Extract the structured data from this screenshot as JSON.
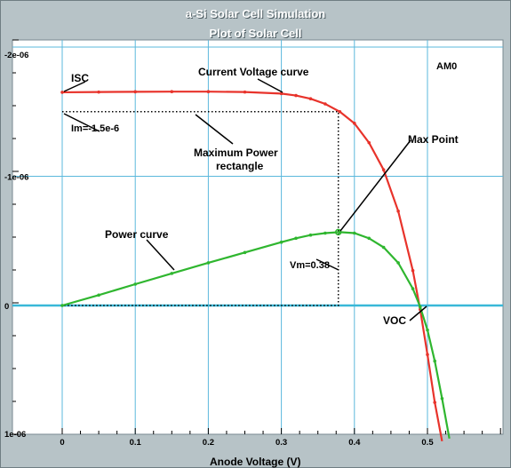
{
  "header": {
    "title": "a-Si Solar Cell Simulation",
    "subtitle": "Plot of Solar Cell"
  },
  "chart_data": {
    "type": "line",
    "title": "a-Si Solar Cell Simulation",
    "subtitle": "Plot of Solar Cell",
    "xlabel": "Anode Voltage (V)",
    "ylabel": "",
    "xlim": [
      0,
      0.6
    ],
    "ylim": [
      -2e-06,
      1e-06
    ],
    "grid": true,
    "x_ticks": [
      {
        "value": 0,
        "label": "0"
      },
      {
        "value": 0.1,
        "label": "0.1"
      },
      {
        "value": 0.2,
        "label": "0.2"
      },
      {
        "value": 0.3,
        "label": "0.3"
      },
      {
        "value": 0.4,
        "label": "0.4"
      },
      {
        "value": 0.5,
        "label": "0.5"
      }
    ],
    "y_ticks": [
      {
        "value": -2e-06,
        "label": "-2e-06"
      },
      {
        "value": -1e-06,
        "label": "-1e-06"
      },
      {
        "value": 0,
        "label": "0"
      },
      {
        "value": 1e-06,
        "label": "1e-06"
      }
    ],
    "series": [
      {
        "color": "#e8332b",
        "x": [
          0,
          0.05,
          0.1,
          0.15,
          0.2,
          0.25,
          0.3,
          0.32,
          0.34,
          0.36,
          0.38,
          0.4,
          0.42,
          0.44,
          0.46,
          0.48,
          0.49,
          0.5,
          0.51,
          0.52
        ],
        "y": [
          -1.65e-06,
          -1.652e-06,
          -1.654e-06,
          -1.655e-06,
          -1.655e-06,
          -1.652e-06,
          -1.64e-06,
          -1.625e-06,
          -1.6e-06,
          -1.56e-06,
          -1.5e-06,
          -1.41e-06,
          -1.26e-06,
          -1.05e-06,
          -7.3e-07,
          -2.7e-07,
          3e-08,
          3.8e-07,
          7.5e-07,
          1.05e-06
        ]
      },
      {
        "color": "#2fb62f",
        "x": [
          0,
          0.05,
          0.1,
          0.15,
          0.2,
          0.25,
          0.3,
          0.32,
          0.34,
          0.36,
          0.38,
          0.4,
          0.42,
          0.44,
          0.46,
          0.48,
          0.49,
          0.5,
          0.51,
          0.52,
          0.53
        ],
        "y": [
          0,
          -8e-08,
          -1.65e-07,
          -2.48e-07,
          -3.3e-07,
          -4.1e-07,
          -4.9e-07,
          -5.2e-07,
          -5.45e-07,
          -5.6e-07,
          -5.68e-07,
          -5.6e-07,
          -5.2e-07,
          -4.5e-07,
          -3.3e-07,
          -1.3e-07,
          1e-08,
          1.9e-07,
          4.3e-07,
          7.2e-07,
          1.03e-06
        ]
      }
    ],
    "max_power_rectangle": {
      "x": 0.378,
      "y": -1.5e-06
    },
    "annotations": {
      "isc": "ISC",
      "current_voltage": "Current Voltage curve",
      "am0": "AM0",
      "im": "Im=-1.5e-6",
      "max_power_line1": "Maximum Power",
      "max_power_line2": "rectangle",
      "max_point": "Max Point",
      "power_curve": "Power curve",
      "vm": "Vm=0.38",
      "voc": "VOC"
    },
    "colors": {
      "current_curve": "#e8332b",
      "power_curve": "#2fb62f",
      "grid": "#5bb8dc",
      "zero_line": "#39b8d8",
      "plot_background": "#ffffff"
    }
  }
}
